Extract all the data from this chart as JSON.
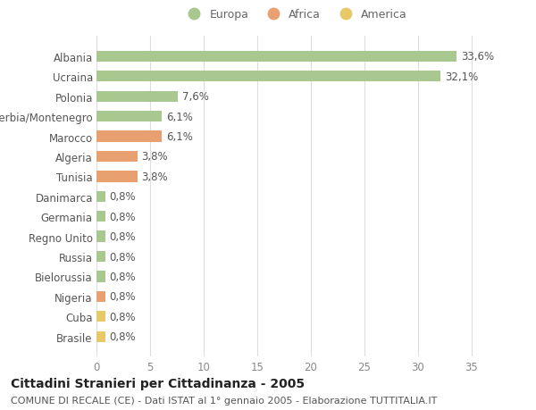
{
  "categories": [
    "Brasile",
    "Cuba",
    "Nigeria",
    "Bielorussia",
    "Russia",
    "Regno Unito",
    "Germania",
    "Danimarca",
    "Tunisia",
    "Algeria",
    "Marocco",
    "Serbia/Montenegro",
    "Polonia",
    "Ucraina",
    "Albania"
  ],
  "values": [
    0.8,
    0.8,
    0.8,
    0.8,
    0.8,
    0.8,
    0.8,
    0.8,
    3.8,
    3.8,
    6.1,
    6.1,
    7.6,
    32.1,
    33.6
  ],
  "colors": [
    "#e8c96a",
    "#e8c96a",
    "#e8a070",
    "#a8c890",
    "#a8c890",
    "#a8c890",
    "#a8c890",
    "#a8c890",
    "#e8a070",
    "#e8a070",
    "#e8a070",
    "#a8c890",
    "#a8c890",
    "#a8c890",
    "#a8c890"
  ],
  "labels": [
    "0,8%",
    "0,8%",
    "0,8%",
    "0,8%",
    "0,8%",
    "0,8%",
    "0,8%",
    "0,8%",
    "3,8%",
    "3,8%",
    "6,1%",
    "6,1%",
    "7,6%",
    "32,1%",
    "33,6%"
  ],
  "title": "Cittadini Stranieri per Cittadinanza - 2005",
  "subtitle": "COMUNE DI RECALE (CE) - Dati ISTAT al 1° gennaio 2005 - Elaborazione TUTTITALIA.IT",
  "legend_labels": [
    "Europa",
    "Africa",
    "America"
  ],
  "legend_colors": [
    "#a8c890",
    "#e8a070",
    "#e8c96a"
  ],
  "xlim": [
    0,
    37
  ],
  "xticks": [
    0,
    5,
    10,
    15,
    20,
    25,
    30,
    35
  ],
  "background_color": "#ffffff",
  "grid_color": "#dddddd",
  "bar_height": 0.55,
  "label_fontsize": 8.5,
  "title_fontsize": 10,
  "subtitle_fontsize": 8,
  "tick_fontsize": 8.5,
  "legend_fontsize": 9
}
